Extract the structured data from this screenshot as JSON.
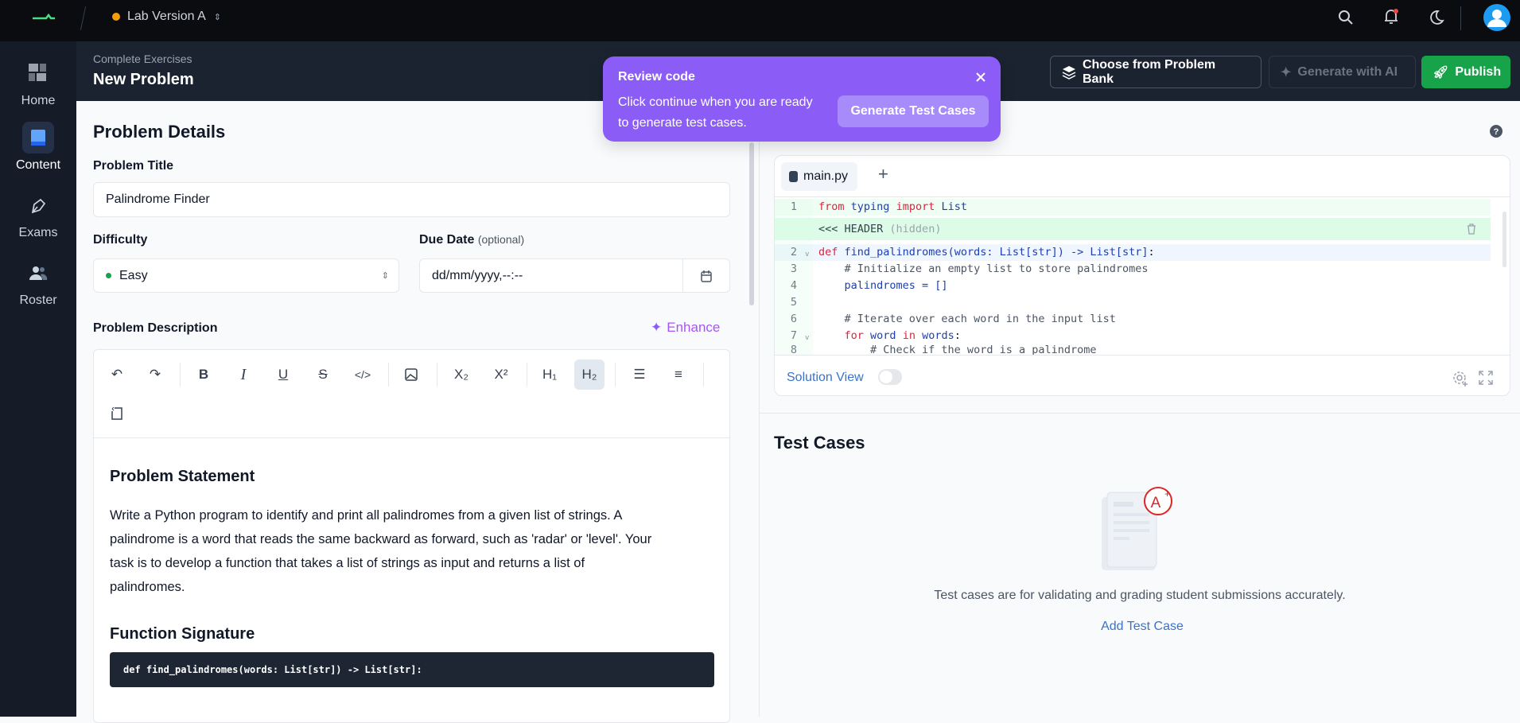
{
  "topbar": {
    "project": "Lab Version A",
    "status_color": "#f59e0b"
  },
  "sidebar": {
    "items": [
      {
        "label": "Home",
        "icon": "dashboard-icon"
      },
      {
        "label": "Content",
        "icon": "book-icon",
        "active": true
      },
      {
        "label": "Exams",
        "icon": "pen-icon"
      },
      {
        "label": "Roster",
        "icon": "users-icon"
      }
    ]
  },
  "header": {
    "breadcrumb": "Complete Exercises",
    "title": "New Problem",
    "choose_bank": "Choose from Problem Bank",
    "generate_ai": "Generate with AI",
    "publish": "Publish"
  },
  "tooltip": {
    "title": "Review code",
    "text_line1": "Click continue when you are ready",
    "text_line2": "to generate test cases.",
    "button": "Generate Test Cases"
  },
  "details": {
    "heading": "Problem Details",
    "title_label": "Problem Title",
    "title_value": "Palindrome Finder",
    "difficulty_label": "Difficulty",
    "difficulty_value": "Easy",
    "difficulty_color": "#16a34a",
    "due_label": "Due Date",
    "due_optional": "(optional)",
    "due_placeholder": "dd/mm/yyyy,--:--",
    "desc_label": "Problem Description",
    "enhance": "Enhance"
  },
  "toolbar": {
    "subscript": "X₂",
    "superscript": "X²",
    "h1": "H₁",
    "h2": "H₂"
  },
  "content": {
    "h_statement": "Problem Statement",
    "p1": "Write a Python program to identify and print all palindromes from a given list of strings. A",
    "p2": "palindrome is a word that reads the same backward as forward, such as 'radar' or 'level'. Your",
    "p3": "task is to develop a function that takes a list of strings as input and returns a list of",
    "p4": "palindromes.",
    "h_signature": "Function Signature",
    "signature": "def find_palindromes(words: List[str]) -> List[str]:"
  },
  "editor": {
    "tab": "main.py",
    "header_label": "<<< HEADER",
    "header_hidden": "(hidden)",
    "solution_view": "Solution View",
    "solution_on": false,
    "lines": [
      {
        "n": "1",
        "html": "from typing import List"
      },
      {
        "n": "2",
        "html": "def find_palindromes(words: List[str]) -> List[str]:"
      },
      {
        "n": "3",
        "html": "    # Initialize an empty list to store palindromes"
      },
      {
        "n": "4",
        "html": "    palindromes = []"
      },
      {
        "n": "5",
        "html": ""
      },
      {
        "n": "6",
        "html": "    # Iterate over each word in the input list"
      },
      {
        "n": "7",
        "html": "    for word in words:"
      },
      {
        "n": "8",
        "html": "        # Check if the word is a palindrome"
      }
    ]
  },
  "tests": {
    "heading": "Test Cases",
    "empty_text": "Test cases are for validating and grading student submissions accurately.",
    "add": "Add Test Case"
  }
}
